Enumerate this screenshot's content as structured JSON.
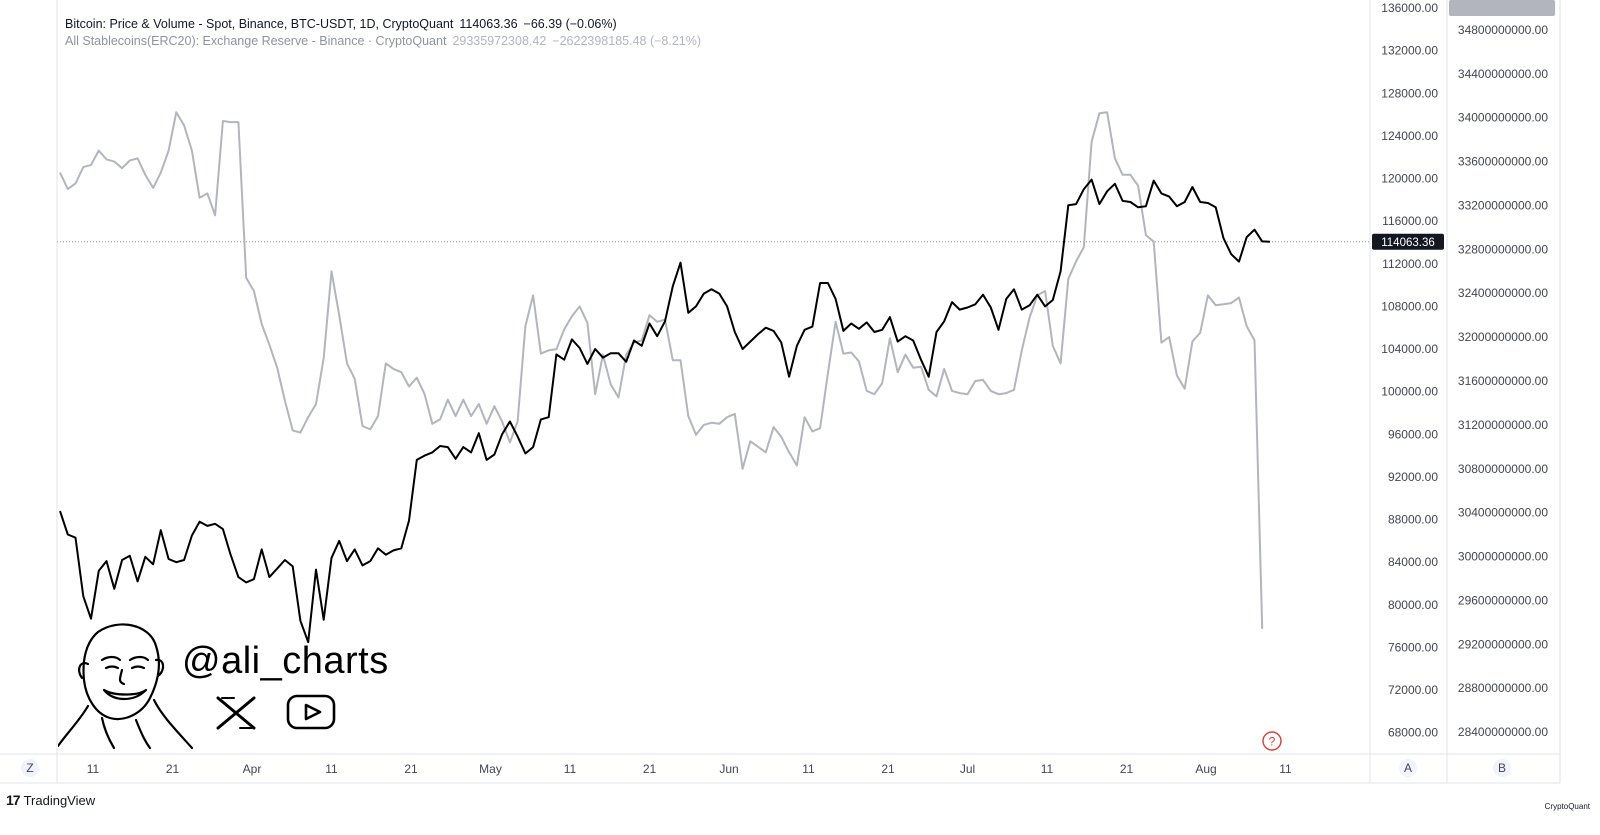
{
  "legend": {
    "btc_name": "Bitcoin: Price & Volume - Spot, Binance, BTC-USDT, 1D, CryptoQuant",
    "btc_value": "114063.36",
    "btc_change": "−66.39 (−0.06%)",
    "stable_name": "All Stablecoins(ERC20): Exchange Reserve - Binance · CryptoQuant",
    "stable_value": "29335972308.42",
    "stable_change": "−2622398185.48 (−8.21%)"
  },
  "watermark": {
    "handle": "@ali_charts",
    "icons": [
      "cartoon-face-icon",
      "x-logo-icon",
      "youtube-play-icon"
    ]
  },
  "footer": {
    "tradingview": "TradingView",
    "cryptoquant": "CryptoQuant"
  },
  "axis_buttons": {
    "z": "Z",
    "a": "A",
    "b": "B"
  },
  "help_icon": "?",
  "colors": {
    "btc": "#000000",
    "stablecoin": "#b2b5be",
    "help": "#e53935",
    "badge_btc_bg": "#131722",
    "badge_stable_bg": "#b2b5be"
  },
  "chart_data": {
    "type": "line",
    "x_tick_labels": [
      "11",
      "21",
      "Apr",
      "11",
      "21",
      "May",
      "11",
      "21",
      "Jun",
      "11",
      "21",
      "Jul",
      "11",
      "21",
      "Aug",
      "11"
    ],
    "y_left_ticks": [
      "136000.00",
      "132000.00",
      "128000.00",
      "124000.00",
      "120000.00",
      "116000.00",
      "112000.00",
      "108000.00",
      "104000.00",
      "100000.00",
      "96000.00",
      "92000.00",
      "88000.00",
      "84000.00",
      "80000.00",
      "76000.00",
      "72000.00",
      "68000.00"
    ],
    "y_right_ticks": [
      "34800000000.00",
      "34400000000.00",
      "34000000000.00",
      "33600000000.00",
      "33200000000.00",
      "32800000000.00",
      "32400000000.00",
      "32000000000.00",
      "31600000000.00",
      "31200000000.00",
      "30800000000.00",
      "30400000000.00",
      "30000000000.00",
      "29600000000.00",
      "29200000000.00",
      "28800000000.00",
      "28400000000.00"
    ],
    "ylim_left": [
      66000,
      136000
    ],
    "ylim_right": [
      28200000000,
      35000000000
    ],
    "last_btc_label": "114063.36",
    "last_stable_label": "29335972308.42",
    "series": [
      {
        "axis": "left",
        "values": [
          88800,
          86600,
          86300,
          80800,
          78700,
          83200,
          84100,
          81500,
          84200,
          84600,
          82200,
          84500,
          83800,
          87000,
          84300,
          84000,
          84200,
          86500,
          87800,
          87400,
          87600,
          87100,
          84700,
          82600,
          82100,
          82400,
          85200,
          82600,
          83400,
          84200,
          83600,
          78500,
          76500,
          83300,
          78600,
          84400,
          86000,
          84100,
          85200,
          83700,
          84100,
          85300,
          84700,
          85100,
          85300,
          87900,
          93600,
          94000,
          94300,
          94900,
          94800,
          93700,
          94800,
          94300,
          96100,
          93600,
          94100,
          96000,
          97200,
          95800,
          94200,
          94800,
          97400,
          97600,
          103500,
          103000,
          104900,
          104100,
          102600,
          104000,
          103200,
          103600,
          103600,
          102800,
          104800,
          104300,
          106400,
          105200,
          106600,
          109900,
          112100,
          107400,
          108000,
          109200,
          109600,
          109200,
          108000,
          105600,
          104000,
          104700,
          105400,
          106000,
          105700,
          104600,
          101400,
          104300,
          105800,
          106100,
          110200,
          110200,
          108700,
          105700,
          106400,
          105900,
          106500,
          105600,
          105800,
          107000,
          104700,
          105200,
          104800,
          103000,
          101400,
          105600,
          106600,
          108400,
          107700,
          107900,
          108200,
          109100,
          107900,
          105800,
          108700,
          109600,
          107700,
          108100,
          109100,
          108000,
          108600,
          111300,
          117500,
          117600,
          119000,
          119900,
          117600,
          118800,
          119500,
          117900,
          117800,
          117300,
          117400,
          119800,
          118600,
          118300,
          117400,
          117800,
          119200,
          117800,
          117700,
          117300,
          114400,
          112900,
          112200,
          114500,
          115200,
          114100,
          114063
        ]
      },
      {
        "axis": "right",
        "values": [
          33500000000,
          33350000000,
          33400000000,
          33550000000,
          33570000000,
          33700000000,
          33620000000,
          33600000000,
          33540000000,
          33610000000,
          33630000000,
          33480000000,
          33360000000,
          33500000000,
          33700000000,
          34050000000,
          33930000000,
          33700000000,
          33270000000,
          33310000000,
          33110000000,
          33970000000,
          33960000000,
          33960000000,
          32540000000,
          32420000000,
          32120000000,
          31930000000,
          31720000000,
          31420000000,
          31150000000,
          31130000000,
          31270000000,
          31390000000,
          31810000000,
          32600000000,
          32200000000,
          31760000000,
          31620000000,
          31190000000,
          31160000000,
          31280000000,
          31760000000,
          31710000000,
          31680000000,
          31550000000,
          31630000000,
          31480000000,
          31210000000,
          31250000000,
          31430000000,
          31280000000,
          31430000000,
          31280000000,
          31390000000,
          31210000000,
          31370000000,
          31230000000,
          31040000000,
          31230000000,
          32100000000,
          32380000000,
          31850000000,
          31880000000,
          31890000000,
          32070000000,
          32190000000,
          32280000000,
          32130000000,
          31480000000,
          31840000000,
          31570000000,
          31450000000,
          31840000000,
          31950000000,
          31970000000,
          32200000000,
          32140000000,
          32160000000,
          31790000000,
          31790000000,
          31280000000,
          31110000000,
          31200000000,
          31220000000,
          31210000000,
          31270000000,
          31300000000,
          30800000000,
          31050000000,
          31000000000,
          30950000000,
          31180000000,
          31090000000,
          30950000000,
          30830000000,
          31270000000,
          31140000000,
          31170000000,
          31670000000,
          32140000000,
          31850000000,
          31860000000,
          31780000000,
          31510000000,
          31480000000,
          31580000000,
          31990000000,
          31680000000,
          31840000000,
          31720000000,
          31730000000,
          31520000000,
          31460000000,
          31710000000,
          31510000000,
          31490000000,
          31480000000,
          31600000000,
          31610000000,
          31510000000,
          31480000000,
          31490000000,
          31520000000,
          31880000000,
          32180000000,
          32380000000,
          32420000000,
          31920000000,
          31760000000,
          32530000000,
          32690000000,
          32820000000,
          33780000000,
          34040000000,
          34050000000,
          33630000000,
          33480000000,
          33480000000,
          33380000000,
          32930000000,
          32870000000,
          31950000000,
          32000000000,
          31650000000,
          31530000000,
          31960000000,
          32040000000,
          32380000000,
          32290000000,
          32300000000,
          32310000000,
          32360000000,
          32100000000,
          31970000000,
          29340000000
        ]
      }
    ]
  }
}
